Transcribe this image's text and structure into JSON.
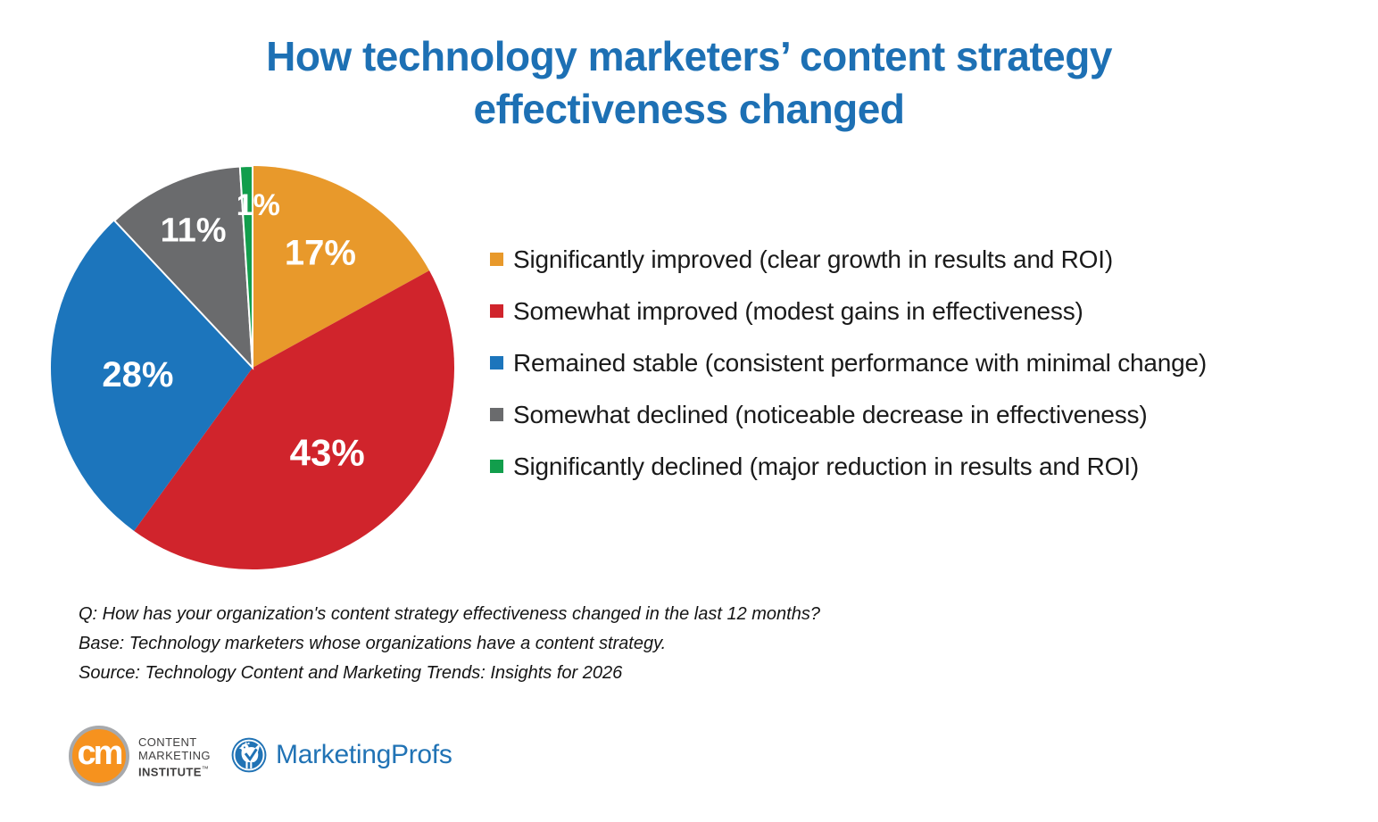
{
  "title": {
    "line1": "How technology marketers’ content strategy",
    "line2": "effectiveness changed",
    "color": "#1D70B4"
  },
  "chart_data": {
    "type": "pie",
    "title": "How technology marketers’ content strategy effectiveness changed",
    "start_angle_deg": 0,
    "direction": "clockwise",
    "legend_position": "right",
    "value_suffix": "%",
    "value_label_color": "#FFFFFF",
    "segments": [
      {
        "label": "Significantly improved (clear growth in results and ROI)",
        "value": 17,
        "color": "#E8992B",
        "label_r": 0.66,
        "label_size": 40,
        "stroke": false
      },
      {
        "label": "Somewhat improved (modest gains in effectiveness)",
        "value": 43,
        "color": "#D0242C",
        "label_r": 0.56,
        "label_size": 42,
        "stroke": false
      },
      {
        "label": "Remained stable (consistent performance with minimal change)",
        "value": 28,
        "color": "#1C75BC",
        "label_r": 0.57,
        "label_size": 40,
        "stroke": false
      },
      {
        "label": "Somewhat declined (noticeable decrease in effectiveness)",
        "value": 11,
        "color": "#6A6B6D",
        "label_r": 0.74,
        "label_size": 38,
        "stroke": true
      },
      {
        "label": "Significantly declined (major reduction in results and ROI)",
        "value": 1,
        "color": "#129E4C",
        "label_r": 0.805,
        "label_size": 34,
        "stroke": true,
        "label_angle_deg": 2
      }
    ]
  },
  "notes": {
    "q": "Q: How has your organization's content strategy effectiveness changed in the last 12 months?",
    "base": "Base: Technology marketers whose organizations have a content strategy.",
    "source": "Source: Technology Content and Marketing Trends: Insights for 2026"
  },
  "logos": {
    "cmi": {
      "monogram": "cm",
      "line1": "CONTENT",
      "line2": "MARKETING",
      "line3": "INSTITUTE",
      "tm": "™",
      "circle_color": "#F6921E",
      "ring_color": "#A7A9AC",
      "text_color": "#3F3E3E"
    },
    "marketingprofs": {
      "name": "MarketingProfs",
      "color": "#2173B5",
      "icon": "rooster-icon"
    }
  }
}
